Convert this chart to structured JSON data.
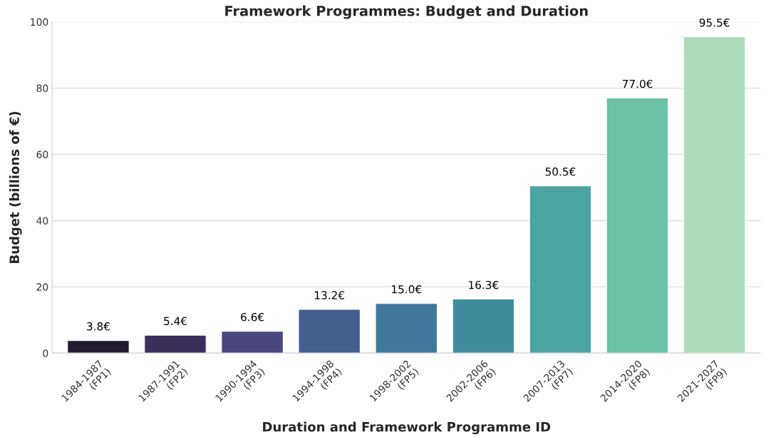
{
  "chart_data": {
    "type": "bar",
    "title": "Framework Programmes: Budget and Duration",
    "xlabel": "Duration and Framework Programme ID",
    "ylabel": "Budget (billions of €)",
    "categories": [
      "1984-1987\n(FP1)",
      "1987-1991\n(FP2)",
      "1990-1994\n(FP3)",
      "1994-1998\n(FP4)",
      "1998-2002\n(FP5)",
      "2002-2006\n(FP6)",
      "2007-2013\n(FP7)",
      "2014-2020\n(FP8)",
      "2021-2027\n(FP9)"
    ],
    "values": [
      3.8,
      5.4,
      6.6,
      13.2,
      15.0,
      16.3,
      50.5,
      77.0,
      95.5
    ],
    "value_labels": [
      "3.8€",
      "5.4€",
      "6.6€",
      "13.2€",
      "15.0€",
      "16.3€",
      "50.5€",
      "77.0€",
      "95.5€"
    ],
    "colors": [
      "#231b2e",
      "#3b2f5a",
      "#4a4680",
      "#445e8e",
      "#41779a",
      "#3f8d9c",
      "#4ba49f",
      "#6bc2a6",
      "#acdbbb"
    ],
    "ylim": [
      0,
      100
    ],
    "yticks": [
      0,
      20,
      40,
      60,
      80,
      100
    ],
    "grid": "y"
  }
}
